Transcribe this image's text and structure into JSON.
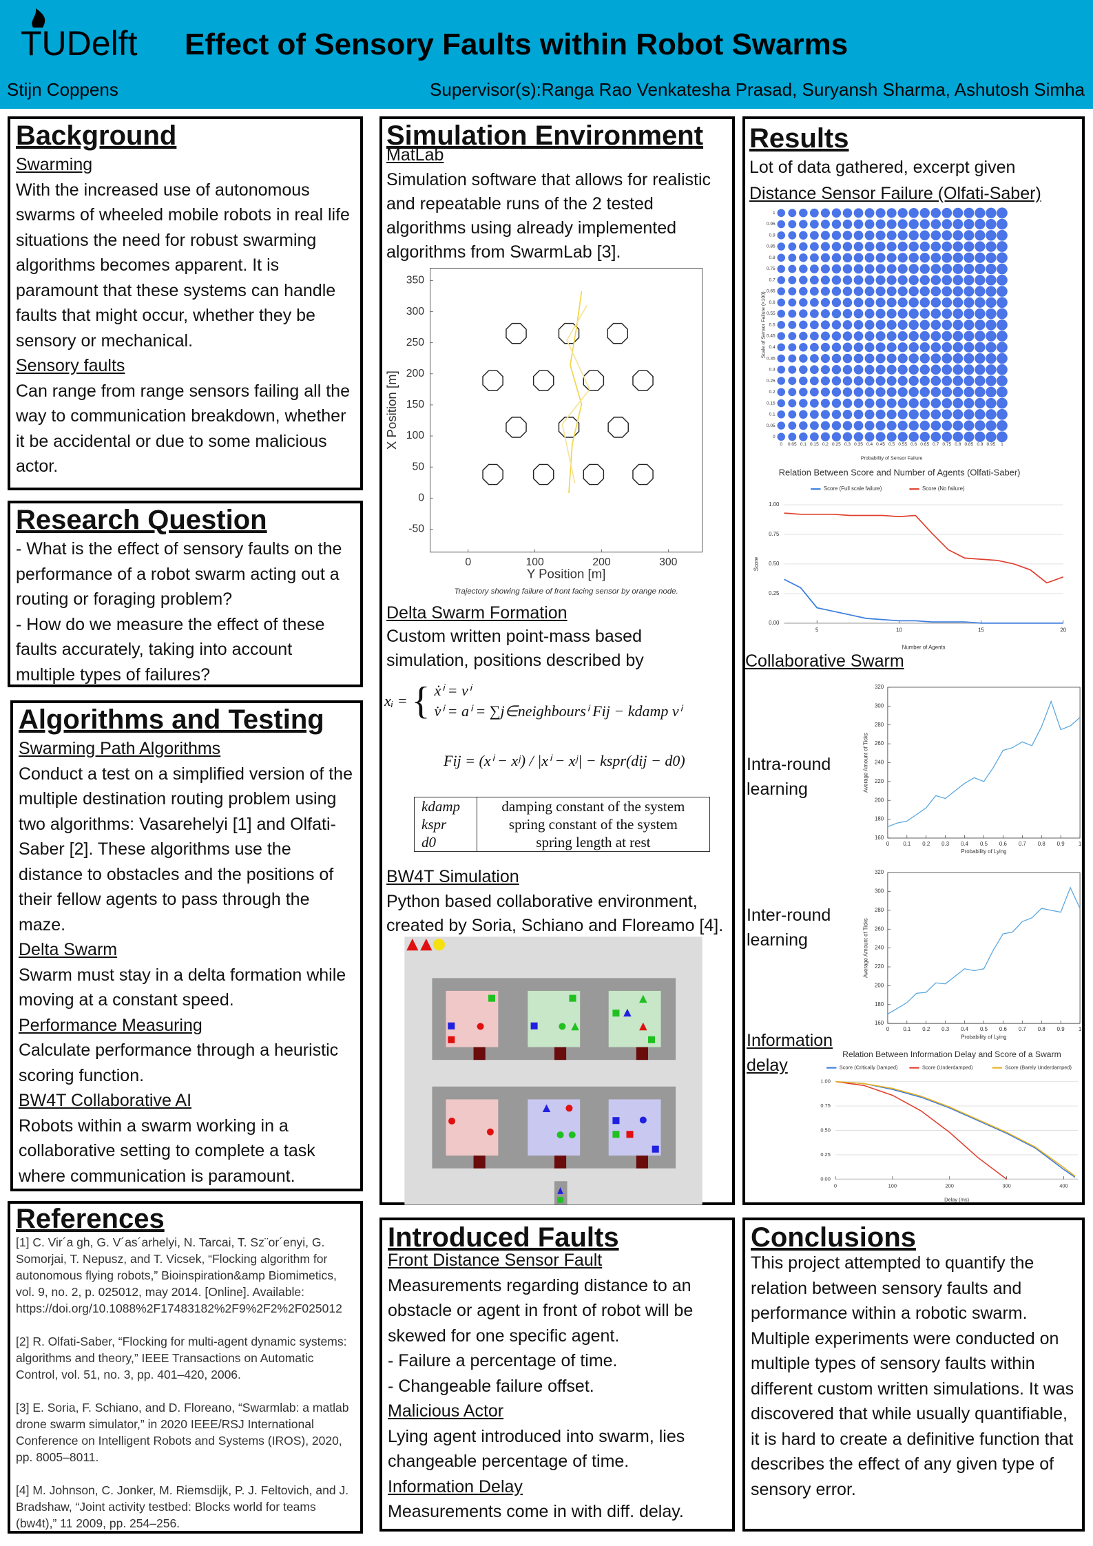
{
  "header": {
    "logo": "TUDelft",
    "title": "Effect of Sensory Faults within Robot Swarms",
    "author": "Stijn Coppens",
    "supervisors": "Supervisor(s):Ranga Rao Venkatesha Prasad, Suryansh Sharma, Ashutosh Simha"
  },
  "background": {
    "title": "Background",
    "parts": [
      {
        "subtitle": "Swarming",
        "text": "With the increased use of autonomous swarms of wheeled mobile robots in real life situations the need for robust swarming algorithms becomes apparent. It is paramount that these systems can handle faults that might occur, whether they be sensory or mechanical."
      },
      {
        "subtitle": "Sensory faults",
        "text": "Can range from range sensors failing all the way to communication breakdown, whether it be accidental or due to some malicious actor."
      }
    ]
  },
  "research_question": {
    "title": "Research Question",
    "lines": [
      "- What is the effect of sensory faults on the performance of a robot swarm acting out a routing or foraging problem?",
      "- How do we measure the effect of these faults accurately, taking into account multiple types of failures?"
    ]
  },
  "algorithms": {
    "title": "Algorithms and Testing",
    "parts": [
      {
        "subtitle": "Swarming Path Algorithms",
        "text": "Conduct a test on a simplified version of the multiple destination routing problem using two algorithms: Vasarehelyi [1] and Olfati-Saber [2]. These algorithms use the distance to obstacles and the positions of their fellow agents to pass through the maze."
      },
      {
        "subtitle": "Delta Swarm",
        "text": "Swarm must stay in a delta formation while moving at a constant speed."
      },
      {
        "subtitle": "Performance Measuring",
        "text": "Calculate performance through a heuristic scoring function."
      },
      {
        "subtitle": "BW4T Collaborative AI",
        "text": "Robots within a swarm working in a collaborative setting to complete a task where communication is paramount."
      }
    ]
  },
  "references": {
    "title": "References",
    "items": [
      "[1] C. Vir´a gh, G. V´as´arhelyi, N. Tarcai, T. Sz¨or´enyi, G. Somorjai, T. Nepusz, and T. Vicsek, “Flocking algorithm for autonomous flying robots,” Bioinspiration&amp Biomimetics, vol. 9, no. 2, p. 025012, may 2014. [Online]. Available: https://doi.org/10.1088%2F17483182%2F9%2F2%2F025012",
      "[2] R. Olfati-Saber, “Flocking for multi-agent dynamic systems: algorithms and theory,” IEEE Transactions on Automatic Control, vol. 51, no. 3, pp. 401–420, 2006.",
      "[3] E. Soria, F. Schiano, and D. Floreano, “Swarmlab: a matlab drone swarm simulator,” in 2020 IEEE/RSJ International Conference on Intelligent Robots and Systems (IROS), 2020, pp. 8005–8011.",
      "[4] M. Johnson, C. Jonker, M. Riemsdijk, P. J. Feltovich, and J. Bradshaw, “Joint activity testbed: Blocks world for teams (bw4t),” 11 2009, pp. 254–256."
    ]
  },
  "simulation": {
    "title": "Simulation Environment",
    "matlab": {
      "subtitle": "MatLab",
      "text": "Simulation software that allows for realistic and repeatable runs of the 2 tested algorithms using already implemented algorithms from SwarmLab [3]."
    },
    "trajectory_plot": {
      "type": "line",
      "caption": "Trajectory showing failure of front facing sensor by orange node.",
      "xlabel": "Y Position [m]",
      "ylabel": "X Position [m]",
      "xlim": [
        -57,
        351
      ],
      "ylim": [
        -87,
        370
      ],
      "xticks": [
        0,
        100,
        200,
        300
      ],
      "yticks": [
        -50,
        0,
        50,
        100,
        150,
        200,
        250,
        300,
        350
      ],
      "obstacles": {
        "x": [
          72,
          151,
          224,
          37,
          113,
          188,
          262,
          72,
          151,
          225,
          37,
          113,
          188,
          262
        ],
        "y": [
          265,
          265,
          265,
          189,
          189,
          189,
          189,
          114,
          114,
          114,
          38,
          38,
          38,
          38
        ]
      },
      "series": [
        {
          "color": "#f2d64b",
          "x": [
            170,
            163,
            153,
            170,
            156,
            151
          ],
          "values": [
            333,
            278,
            214,
            151,
            87,
            8
          ]
        },
        {
          "color": "#f7e49a",
          "x": [
            178,
            148,
            182,
            141,
            160
          ],
          "values": [
            310,
            254,
            175,
            119,
            24
          ]
        }
      ]
    },
    "delta": {
      "subtitle": "Delta Swarm Formation",
      "text": "Custom written point-mass based simulation, positions described by",
      "equation_lhs": "xᵢ =",
      "equation_lines": [
        "ẋⁱ = vⁱ",
        "v̇ⁱ = aⁱ = ∑j∈neighboursⁱ Fij − kdamp vⁱ"
      ],
      "equation_force": "Fij = (xⁱ − xʲ) / |xⁱ − xʲ| − kspr(dij − d0)",
      "table": [
        [
          "kdamp",
          "damping constant of the system"
        ],
        [
          "kspr",
          "spring constant of the system"
        ],
        [
          "d0",
          "spring length at rest"
        ]
      ]
    },
    "bw4t": {
      "subtitle": "BW4T Simulation",
      "text": "Python based collaborative environment, created by Soria, Schiano and Floreamo [4]."
    }
  },
  "results": {
    "title": "Results",
    "intro": "Lot of data gathered, excerpt given",
    "subtitle_distance": "Distance Sensor Failure (Olfati-Saber)",
    "bubble_chart": {
      "type": "bubble",
      "xlabel": "Probability of Sensor Failure",
      "ylabel": "Scale of Sensor Failure (×100)",
      "color": "#4a74e8",
      "xlim": [
        0,
        1
      ],
      "ylim": [
        0,
        1
      ],
      "xticks": [
        0,
        0.05,
        0.1,
        0.15,
        0.2,
        0.25,
        0.3,
        0.35,
        0.4,
        0.45,
        0.5,
        0.55,
        0.6,
        0.65,
        0.7,
        0.75,
        0.8,
        0.85,
        0.9,
        0.95,
        1
      ],
      "yticks": [
        0,
        0.05,
        0.1,
        0.15,
        0.2,
        0.25,
        0.3,
        0.35,
        0.4,
        0.45,
        0.5,
        0.55,
        0.6,
        0.65,
        0.7,
        0.75,
        0.8,
        0.85,
        0.9,
        0.95,
        1
      ],
      "sizes": [
        0.72,
        0.74,
        0.78,
        0.8,
        0.82,
        0.84,
        0.85,
        0.86,
        0.87,
        0.88,
        0.88,
        0.89,
        0.9,
        0.9,
        0.91,
        0.92,
        0.93,
        0.94,
        0.95,
        0.96,
        0.98
      ]
    },
    "score_chart": {
      "type": "line",
      "title": "Relation Between Score and Number of Agents (Olfati-Saber)",
      "xlabel": "Number of Agents",
      "ylabel": "Score",
      "grid": true,
      "xlim": [
        3,
        20
      ],
      "ylim": [
        0,
        1
      ],
      "xticks": [
        5,
        10,
        15,
        20
      ],
      "yticks": [
        {
          "value": 0,
          "label": "0.00"
        },
        {
          "value": 0.25,
          "label": "0.25"
        },
        {
          "value": 0.5,
          "label": "0.50"
        },
        {
          "value": 0.75,
          "label": "0.75"
        },
        {
          "value": 1,
          "label": "1.00"
        }
      ],
      "x": [
        3,
        4,
        5,
        6,
        7,
        8,
        9,
        10,
        11,
        12,
        13,
        14,
        15,
        16,
        17,
        18,
        19,
        20
      ],
      "series": [
        {
          "name": "Score (Full scale failure)",
          "color": "#3b7ddd",
          "values": [
            0.37,
            0.3,
            0.13,
            0.1,
            0.07,
            0.04,
            0.03,
            0.02,
            0.02,
            0.01,
            0.01,
            0.01,
            0,
            0,
            0,
            0,
            0,
            0
          ]
        },
        {
          "name": "Score (No failure)",
          "color": "#e0402f",
          "values": [
            0.93,
            0.92,
            0.92,
            0.92,
            0.91,
            0.91,
            0.91,
            0.9,
            0.91,
            0.76,
            0.62,
            0.55,
            0.54,
            0.53,
            0.5,
            0.45,
            0.34,
            0.39
          ]
        }
      ]
    },
    "subtitle_collaborative": "Collaborative Swarm",
    "intra_label": "Intra-round learning",
    "intra_chart": {
      "type": "line",
      "xlabel": "Probability of Lying",
      "ylabel": "Average Amount of Ticks",
      "xlim": [
        0,
        1
      ],
      "ylim": [
        160,
        320
      ],
      "xticks": [
        0,
        0.1,
        0.2,
        0.3,
        0.4,
        0.5,
        0.6,
        0.7,
        0.8,
        0.9,
        1
      ],
      "yticks": [
        160,
        180,
        200,
        220,
        240,
        260,
        280,
        300,
        320
      ],
      "x": [
        0,
        0.05,
        0.1,
        0.15,
        0.2,
        0.25,
        0.3,
        0.35,
        0.4,
        0.45,
        0.5,
        0.55,
        0.6,
        0.65,
        0.7,
        0.75,
        0.8,
        0.85,
        0.9,
        0.95,
        1
      ],
      "series": [
        {
          "color": "#5aa7e0",
          "values": [
            172,
            176,
            178,
            185,
            192,
            205,
            202,
            210,
            218,
            224,
            220,
            235,
            253,
            256,
            262,
            258,
            278,
            305,
            275,
            279,
            288
          ]
        }
      ]
    },
    "inter_label": "Inter-round learning",
    "inter_chart": {
      "type": "line",
      "xlabel": "Probability of Lying",
      "ylabel": "Average Amount of Ticks",
      "xlim": [
        0,
        1
      ],
      "ylim": [
        160,
        320
      ],
      "xticks": [
        0,
        0.1,
        0.2,
        0.3,
        0.4,
        0.5,
        0.6,
        0.7,
        0.8,
        0.9,
        1
      ],
      "yticks": [
        160,
        180,
        200,
        220,
        240,
        260,
        280,
        300,
        320
      ],
      "x": [
        0,
        0.05,
        0.1,
        0.15,
        0.2,
        0.25,
        0.3,
        0.35,
        0.4,
        0.45,
        0.5,
        0.55,
        0.6,
        0.65,
        0.7,
        0.75,
        0.8,
        0.85,
        0.9,
        0.95,
        1
      ],
      "series": [
        {
          "color": "#5aa7e0",
          "values": [
            170,
            176,
            182,
            192,
            193,
            203,
            202,
            210,
            218,
            216,
            218,
            238,
            255,
            257,
            268,
            272,
            282,
            280,
            278,
            304,
            282
          ]
        }
      ]
    },
    "delay_label": "Information delay",
    "delay_chart": {
      "type": "line",
      "title": "Relation Between Information Delay and Score of a Swarm",
      "xlabel": "Delay (ms)",
      "grid": true,
      "xlim": [
        0,
        425
      ],
      "ylim": [
        0,
        1
      ],
      "xticks": [
        0,
        100,
        200,
        300,
        400
      ],
      "yticks": [
        {
          "value": 0,
          "label": "0.00"
        },
        {
          "value": 0.25,
          "label": "0.25"
        },
        {
          "value": 0.5,
          "label": "0.50"
        },
        {
          "value": 0.75,
          "label": "0.75"
        },
        {
          "value": 1,
          "label": "1.00"
        }
      ],
      "x": [
        0,
        50,
        100,
        150,
        200,
        250,
        300,
        350,
        400,
        420
      ],
      "series": [
        {
          "name": "Score (Critically Damped)",
          "color": "#3b7ddd",
          "values": [
            1,
            0.98,
            0.92,
            0.84,
            0.73,
            0.6,
            0.47,
            0.32,
            0.1,
            0.02
          ]
        },
        {
          "name": "Score (Underdamped)",
          "color": "#e0402f",
          "values": [
            1,
            0.96,
            0.86,
            0.7,
            0.48,
            0.22,
            0,
            null,
            null,
            null
          ]
        },
        {
          "name": "Score (Barely Underdamped)",
          "color": "#e8b020",
          "values": [
            1,
            0.98,
            0.93,
            0.85,
            0.74,
            0.61,
            0.48,
            0.33,
            0.12,
            0.03
          ]
        }
      ]
    }
  },
  "faults": {
    "title": "Introduced Faults",
    "parts": [
      {
        "subtitle": "Front Distance Sensor Fault",
        "lines": [
          "Measurements regarding distance to an obstacle or agent in front of robot will be skewed for one specific agent.",
          "- Failure a percentage of time.",
          "- Changeable failure offset."
        ]
      },
      {
        "subtitle": "Malicious Actor",
        "lines": [
          "Lying agent introduced into swarm, lies changeable percentage of time."
        ]
      },
      {
        "subtitle": "Information Delay",
        "lines": [
          "Measurements come in with diff. delay."
        ]
      }
    ]
  },
  "conclusions": {
    "title": "Conclusions",
    "text": "This project attempted to quantify the relation between sensory faults and performance within a robotic swarm. Multiple experiments were conducted on multiple types of sensory faults within different custom written simulations. It was discovered that while usually quantifiable, it is hard to create a definitive function that describes the effect of any given type of sensory error."
  }
}
